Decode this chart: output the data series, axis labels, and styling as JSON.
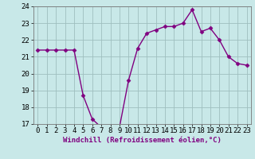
{
  "x": [
    0,
    1,
    2,
    3,
    4,
    5,
    6,
    7,
    8,
    9,
    10,
    11,
    12,
    13,
    14,
    15,
    16,
    17,
    18,
    19,
    20,
    21,
    22,
    23
  ],
  "y": [
    21.4,
    21.4,
    21.4,
    21.4,
    21.4,
    18.7,
    17.3,
    16.8,
    16.8,
    16.8,
    19.6,
    21.5,
    22.4,
    22.6,
    22.8,
    22.8,
    23.0,
    23.8,
    22.5,
    22.7,
    22.0,
    21.0,
    20.6,
    20.5
  ],
  "line_color": "#800080",
  "marker": "D",
  "marker_size": 2.5,
  "xlabel": "Windchill (Refroidissement éolien,°C)",
  "ylabel": "",
  "ylim": [
    17,
    24
  ],
  "xlim": [
    -0.5,
    23.5
  ],
  "yticks": [
    17,
    18,
    19,
    20,
    21,
    22,
    23,
    24
  ],
  "xticks": [
    0,
    1,
    2,
    3,
    4,
    5,
    6,
    7,
    8,
    9,
    10,
    11,
    12,
    13,
    14,
    15,
    16,
    17,
    18,
    19,
    20,
    21,
    22,
    23
  ],
  "xtick_labels": [
    "0",
    "1",
    "2",
    "3",
    "4",
    "5",
    "6",
    "7",
    "8",
    "9",
    "10",
    "11",
    "12",
    "13",
    "14",
    "15",
    "16",
    "17",
    "18",
    "19",
    "20",
    "21",
    "22",
    "23"
  ],
  "bg_color": "#c8e8e8",
  "grid_color": "#9fbfbf",
  "line_width": 1.0,
  "tick_fontsize": 6.5,
  "xlabel_fontsize": 6.5
}
